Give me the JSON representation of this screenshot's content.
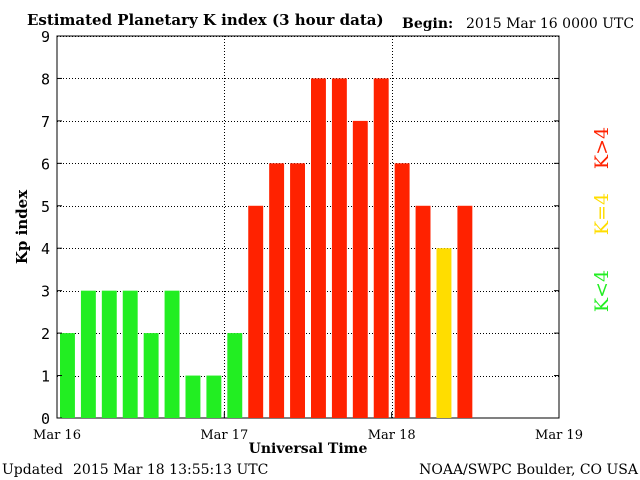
{
  "header": {
    "title": "Estimated Planetary K index (3 hour data)",
    "begin_label": "Begin:",
    "begin_value": "2015 Mar 16 0000 UTC"
  },
  "footer": {
    "updated_label": "Updated",
    "updated_value": "2015 Mar 18 13:55:13 UTC",
    "source": "NOAA/SWPC Boulder, CO USA"
  },
  "legend": {
    "low": "K<4",
    "mid": "K=4",
    "high": "K>4"
  },
  "colors": {
    "low": "#22ee22",
    "mid": "#ffdd00",
    "high": "#ff2200",
    "frame": "#000000",
    "grid": "#000000"
  },
  "chart_data": {
    "type": "bar",
    "title": "Estimated Planetary K index (3 hour data)",
    "xlabel": "Universal Time",
    "ylabel": "Kp index",
    "ylim": [
      0,
      9
    ],
    "yticks": [
      0,
      1,
      2,
      3,
      4,
      5,
      6,
      7,
      8,
      9
    ],
    "x_tick_labels": [
      "Mar 16",
      "Mar 17",
      "Mar 18",
      "Mar 19"
    ],
    "interval_hours": 3,
    "grid": true,
    "values": [
      2,
      3,
      3,
      3,
      2,
      3,
      1,
      1,
      2,
      5,
      6,
      6,
      8,
      8,
      7,
      8,
      6,
      5,
      4,
      5
    ]
  }
}
